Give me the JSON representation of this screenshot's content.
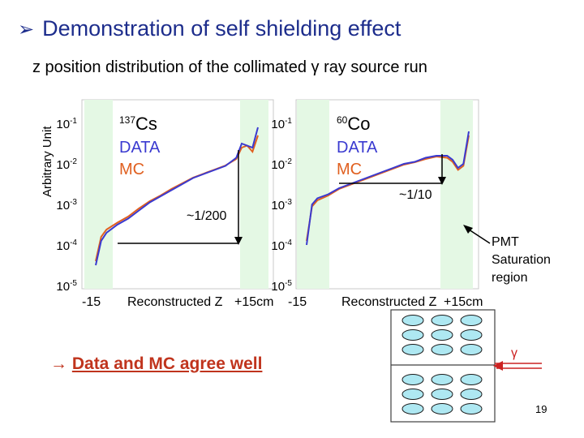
{
  "slide": {
    "title": "Demonstration of self shielding effect",
    "subtitle": "z position distribution of the collimated γ ray source run",
    "conclusion_arrow": "→",
    "conclusion": "Data and MC agree well",
    "page_number": "19"
  },
  "colors": {
    "data": "#3a3ad0",
    "mc": "#e06020",
    "band": "#e4f8e4",
    "title": "#1d2d8c",
    "detector": "#aee8f2"
  },
  "chart_data": [
    {
      "type": "line",
      "source_label_mass": "137",
      "source_label_element": "Cs",
      "legend": [
        "DATA",
        "MC"
      ],
      "ylabel": "Arbitrary Unit",
      "xlabel": "Reconstructed Z",
      "x_tick_labels": [
        "-15",
        "+15cm"
      ],
      "y_tick_labels": [
        {
          "base": "10",
          "exp": "-1"
        },
        {
          "base": "10",
          "exp": "-2"
        },
        {
          "base": "10",
          "exp": "-3"
        },
        {
          "base": "10",
          "exp": "-4"
        },
        {
          "base": "10",
          "exp": "-5"
        }
      ],
      "y_log_range": [
        -5,
        -1
      ],
      "ratio_annotation": "~1/200",
      "series": [
        {
          "name": "DATA",
          "x": [
            -15,
            -14,
            -13,
            -11,
            -9,
            -7,
            -5,
            -3,
            -1,
            1,
            3,
            5,
            7,
            9,
            11,
            12,
            13,
            14,
            15
          ],
          "log_y": [
            -4.5,
            -3.9,
            -3.7,
            -3.5,
            -3.35,
            -3.15,
            -2.95,
            -2.8,
            -2.65,
            -2.5,
            -2.35,
            -2.25,
            -2.15,
            -2.05,
            -1.85,
            -1.5,
            -1.55,
            -1.6,
            -1.1
          ]
        },
        {
          "name": "MC",
          "x": [
            -15,
            -14,
            -13,
            -11,
            -9,
            -7,
            -5,
            -3,
            -1,
            1,
            3,
            5,
            7,
            9,
            11,
            12,
            13,
            14,
            15
          ],
          "log_y": [
            -4.4,
            -3.8,
            -3.62,
            -3.45,
            -3.3,
            -3.1,
            -2.92,
            -2.78,
            -2.62,
            -2.48,
            -2.34,
            -2.24,
            -2.14,
            -2.04,
            -1.88,
            -1.6,
            -1.55,
            -1.7,
            -1.3
          ]
        }
      ]
    },
    {
      "type": "line",
      "source_label_mass": "60",
      "source_label_element": "Co",
      "legend": [
        "DATA",
        "MC"
      ],
      "xlabel": "Reconstructed Z",
      "x_tick_labels": [
        "-15",
        "+15cm"
      ],
      "y_tick_labels": [
        {
          "base": "10",
          "exp": "-1"
        },
        {
          "base": "10",
          "exp": "-2"
        },
        {
          "base": "10",
          "exp": "-3"
        },
        {
          "base": "10",
          "exp": "-4"
        },
        {
          "base": "10",
          "exp": "-5"
        }
      ],
      "y_log_range": [
        -5,
        -1
      ],
      "ratio_annotation": "~1/10",
      "annotation": [
        "PMT",
        "Saturation",
        "region"
      ],
      "series": [
        {
          "name": "DATA",
          "x": [
            -15,
            -14,
            -13,
            -11,
            -9,
            -7,
            -5,
            -3,
            -1,
            1,
            3,
            5,
            7,
            9,
            11,
            12,
            13,
            14,
            15
          ],
          "log_y": [
            -4.0,
            -3.0,
            -2.85,
            -2.75,
            -2.6,
            -2.5,
            -2.4,
            -2.3,
            -2.2,
            -2.1,
            -2.0,
            -1.95,
            -1.85,
            -1.8,
            -1.8,
            -1.9,
            -2.1,
            -2.0,
            -1.2
          ]
        },
        {
          "name": "MC",
          "x": [
            -15,
            -14,
            -13,
            -11,
            -9,
            -7,
            -5,
            -3,
            -1,
            1,
            3,
            5,
            7,
            9,
            11,
            12,
            13,
            14,
            15
          ],
          "log_y": [
            -3.9,
            -3.05,
            -2.9,
            -2.78,
            -2.62,
            -2.52,
            -2.42,
            -2.32,
            -2.22,
            -2.12,
            -2.02,
            -1.96,
            -1.88,
            -1.82,
            -1.85,
            -1.95,
            -2.15,
            -2.05,
            -1.3
          ]
        }
      ]
    }
  ],
  "detector_diagram": {
    "gamma_label": "γ",
    "rows_top": 3,
    "rows_bottom": 3,
    "cols": 3
  }
}
